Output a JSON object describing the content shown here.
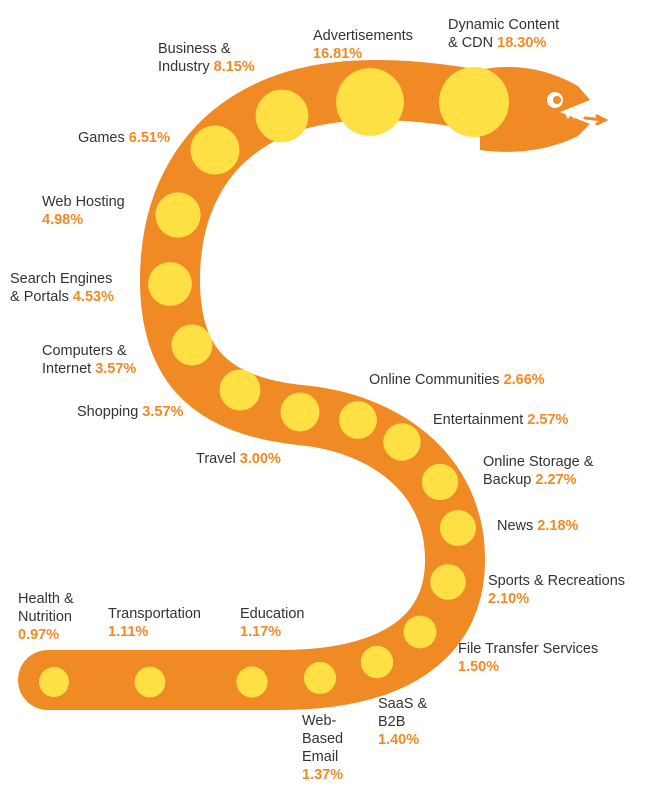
{
  "colors": {
    "body": "#f08a24",
    "dot": "#ffe044",
    "text": "#333333",
    "value": "#f08a24"
  },
  "chart_data": {
    "type": "bubble-snake",
    "title": "",
    "unit": "%",
    "items": [
      {
        "name": "Dynamic Content & CDN",
        "line1": "Dynamic Content",
        "line2": "& CDN",
        "value": 18.3,
        "label": "18.30%"
      },
      {
        "name": "Advertisements",
        "line1": "Advertisements",
        "line2": "",
        "value": 16.81,
        "label": "16.81%"
      },
      {
        "name": "Business & Industry",
        "line1": "Business &",
        "line2": "Industry",
        "value": 8.15,
        "label": "8.15%"
      },
      {
        "name": "Games",
        "line1": "Games",
        "line2": "",
        "value": 6.51,
        "label": "6.51%"
      },
      {
        "name": "Web Hosting",
        "line1": "Web Hosting",
        "line2": "",
        "value": 4.98,
        "label": "4.98%"
      },
      {
        "name": "Search Engines & Portals",
        "line1": "Search Engines",
        "line2": "& Portals",
        "value": 4.53,
        "label": "4.53%"
      },
      {
        "name": "Computers & Internet",
        "line1": "Computers &",
        "line2": "Internet",
        "value": 3.57,
        "label": "3.57%"
      },
      {
        "name": "Shopping",
        "line1": "Shopping",
        "line2": "",
        "value": 3.57,
        "label": "3.57%"
      },
      {
        "name": "Travel",
        "line1": "Travel",
        "line2": "",
        "value": 3.0,
        "label": "3.00%"
      },
      {
        "name": "Online Communities",
        "line1": "Online Communities",
        "line2": "",
        "value": 2.66,
        "label": "2.66%"
      },
      {
        "name": "Entertainment",
        "line1": "Entertainment",
        "line2": "",
        "value": 2.57,
        "label": "2.57%"
      },
      {
        "name": "Online Storage & Backup",
        "line1": "Online Storage &",
        "line2": "Backup",
        "value": 2.27,
        "label": "2.27%"
      },
      {
        "name": "News",
        "line1": "News",
        "line2": "",
        "value": 2.18,
        "label": "2.18%"
      },
      {
        "name": "Sports & Recreations",
        "line1": "Sports & Recreations",
        "line2": "",
        "value": 2.1,
        "label": "2.10%"
      },
      {
        "name": "File Transfer Services",
        "line1": "File Transfer Services",
        "line2": "",
        "value": 1.5,
        "label": "1.50%"
      },
      {
        "name": "SaaS & B2B",
        "line1": "SaaS &",
        "line2": "B2B",
        "value": 1.4,
        "label": "1.40%"
      },
      {
        "name": "Web-Based Email",
        "line1": "Web-",
        "line2": "Based",
        "line3": "Email",
        "value": 1.37,
        "label": "1.37%"
      },
      {
        "name": "Education",
        "line1": "Education",
        "line2": "",
        "value": 1.17,
        "label": "1.17%"
      },
      {
        "name": "Transportation",
        "line1": "Transportation",
        "line2": "",
        "value": 1.11,
        "label": "1.11%"
      },
      {
        "name": "Health & Nutrition",
        "line1": "Health &",
        "line2": "Nutrition",
        "value": 0.97,
        "label": "0.97%"
      }
    ]
  }
}
